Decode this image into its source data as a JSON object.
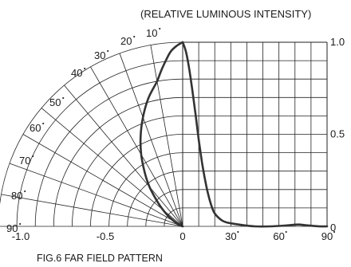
{
  "chart_data": {
    "type": "polar-rectangular",
    "title": "(RELATIVE LUMINOUS INTENSITY)",
    "caption": "FIG.6  FAR FIELD PATTERN",
    "left_polar": {
      "angle_labels": [
        "10",
        "20",
        "30",
        "40",
        "50",
        "60",
        "70",
        "80",
        "90"
      ],
      "radius_labels": [
        "-1.0",
        "-0.5",
        "0"
      ]
    },
    "right_rect": {
      "x_tick_labels": [
        "30",
        "60",
        "90"
      ],
      "y_tick_labels": [
        "1.0",
        "0.5",
        "0"
      ],
      "xlim": [
        0,
        90
      ],
      "ylim": [
        0,
        1.0
      ]
    },
    "series": [
      {
        "values_rect": [
          [
            0,
            1.0
          ],
          [
            2,
            0.95
          ],
          [
            4,
            0.86
          ],
          [
            6,
            0.74
          ],
          [
            8,
            0.61
          ],
          [
            10,
            0.47
          ],
          [
            12,
            0.35
          ],
          [
            14,
            0.25
          ],
          [
            16,
            0.17
          ],
          [
            18,
            0.11
          ],
          [
            20,
            0.07
          ],
          [
            24,
            0.035
          ],
          [
            28,
            0.02
          ],
          [
            35,
            0.01
          ],
          [
            45,
            0.0
          ],
          [
            55,
            0.0
          ],
          [
            65,
            0.005
          ],
          [
            72,
            0.01
          ],
          [
            78,
            0.005
          ],
          [
            85,
            0.0
          ],
          [
            90,
            0.0
          ]
        ],
        "values_polar": [
          [
            0,
            1.0
          ],
          [
            2,
            0.98
          ],
          [
            4,
            0.95
          ],
          [
            6,
            0.9
          ],
          [
            8,
            0.85
          ],
          [
            10,
            0.8
          ],
          [
            15,
            0.72
          ],
          [
            20,
            0.63
          ],
          [
            25,
            0.54
          ],
          [
            30,
            0.45
          ],
          [
            35,
            0.36
          ],
          [
            40,
            0.28
          ],
          [
            45,
            0.2
          ],
          [
            50,
            0.14
          ],
          [
            55,
            0.09
          ],
          [
            60,
            0.05
          ],
          [
            65,
            0.025
          ],
          [
            70,
            0.01
          ],
          [
            75,
            0.005
          ],
          [
            80,
            0.0
          ],
          [
            90,
            0.0
          ]
        ]
      }
    ]
  }
}
